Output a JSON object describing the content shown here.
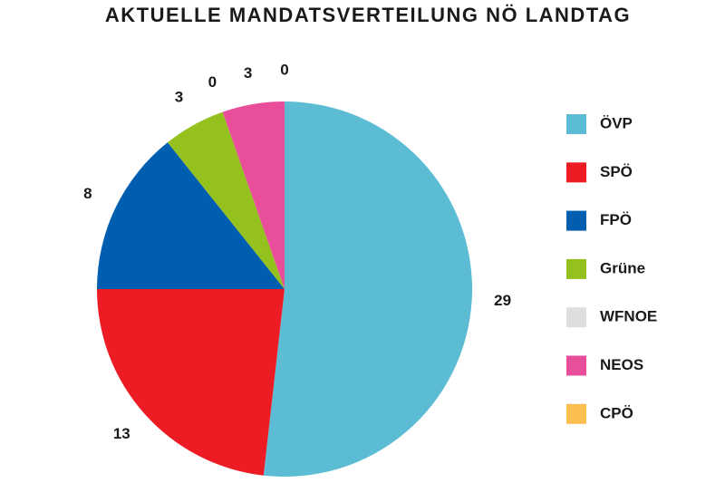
{
  "chart_data": {
    "type": "pie",
    "title": "AKTUELLE MANDATSVERTEILUNG NÖ LANDTAG",
    "categories": [
      "ÖVP",
      "SPÖ",
      "FPÖ",
      "Grüne",
      "WFNOE",
      "NEOS",
      "CPÖ"
    ],
    "values": [
      29,
      13,
      8,
      3,
      0,
      3,
      0
    ],
    "colors": [
      "#5bbcd3",
      "#ed1c24",
      "#005eb0",
      "#95c11f",
      "#dedede",
      "#e94e9a",
      "#fbbe4f"
    ],
    "legend": "right"
  }
}
